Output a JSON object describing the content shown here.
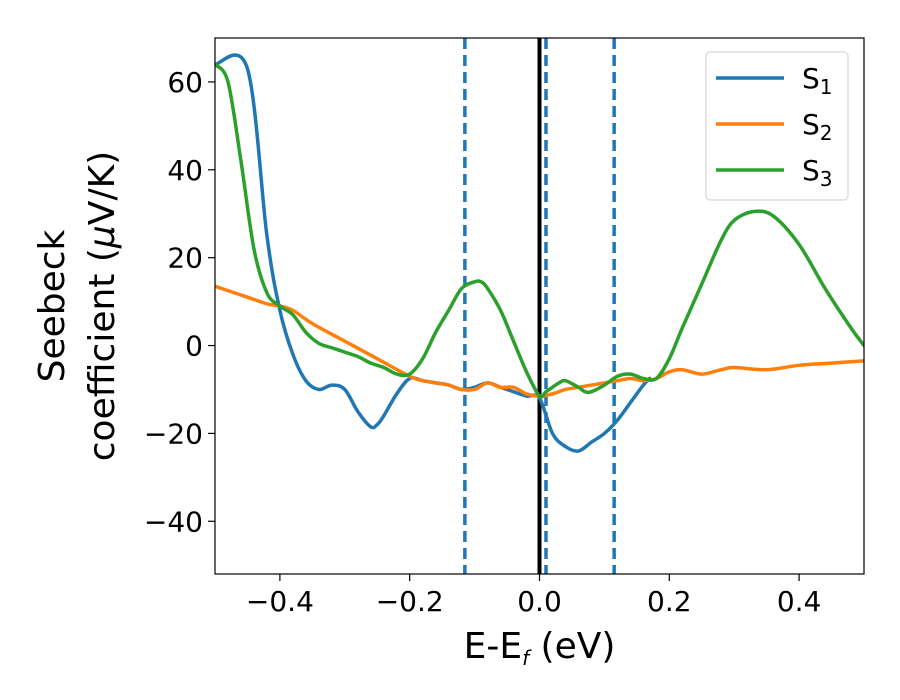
{
  "chart_data": {
    "type": "line",
    "xlabel": {
      "main": "E-E",
      "sub": "f",
      "unit": " (eV)"
    },
    "ylabel": {
      "line1": "Seebeck",
      "line2_pre": "coefficient  (",
      "line2_mu": "μ",
      "line2_post": "V/K)"
    },
    "xlim": [
      -0.5,
      0.5
    ],
    "ylim": [
      -52,
      70
    ],
    "xticks": [
      -0.4,
      -0.2,
      0.0,
      0.2,
      0.4
    ],
    "xtick_labels": [
      "−0.4",
      "−0.2",
      "0.0",
      "0.2",
      "0.4"
    ],
    "yticks": [
      -40,
      -20,
      0,
      20,
      40,
      60
    ],
    "ytick_labels": [
      "−40",
      "−20",
      "0",
      "20",
      "40",
      "60"
    ],
    "grid": false,
    "legend_position": "top-right",
    "vertical_lines": [
      {
        "x": -0.115,
        "style": "dashed",
        "color": "#1f77b4"
      },
      {
        "x": 0.0,
        "style": "solid",
        "color": "#000000"
      },
      {
        "x": 0.01,
        "style": "dashed",
        "color": "#1f77b4"
      },
      {
        "x": 0.115,
        "style": "dashed",
        "color": "#1f77b4"
      }
    ],
    "series": [
      {
        "name": "S",
        "sub": "1",
        "color": "#1f77b4",
        "x": [
          -0.5,
          -0.45,
          -0.42,
          -0.4,
          -0.38,
          -0.36,
          -0.34,
          -0.32,
          -0.3,
          -0.28,
          -0.26,
          -0.25,
          -0.24,
          -0.22,
          -0.2,
          -0.18,
          -0.16,
          -0.14,
          -0.12,
          -0.1,
          -0.08,
          -0.06,
          -0.04,
          -0.02,
          0.0,
          0.02,
          0.04,
          0.06,
          0.08,
          0.1,
          0.12,
          0.14,
          0.16,
          0.17
        ],
        "y": [
          64,
          63,
          25,
          8,
          -2,
          -8,
          -10,
          -9,
          -10,
          -15,
          -18.5,
          -18,
          -16,
          -11,
          -7.5,
          -8,
          -8.5,
          -9,
          -10,
          -9.5,
          -8.5,
          -9.5,
          -10.5,
          -11.5,
          -12,
          -20,
          -23,
          -24,
          -22,
          -20,
          -17,
          -13,
          -9,
          -7.5
        ]
      },
      {
        "name": "S",
        "sub": "2",
        "color": "#ff7f0e",
        "x": [
          -0.5,
          -0.45,
          -0.42,
          -0.4,
          -0.38,
          -0.35,
          -0.3,
          -0.25,
          -0.2,
          -0.18,
          -0.16,
          -0.14,
          -0.12,
          -0.1,
          -0.08,
          -0.06,
          -0.04,
          -0.02,
          0.0,
          0.02,
          0.04,
          0.06,
          0.08,
          0.1,
          0.12,
          0.14,
          0.16,
          0.18,
          0.2,
          0.22,
          0.25,
          0.28,
          0.3,
          0.35,
          0.4,
          0.45,
          0.5
        ],
        "y": [
          13.5,
          11,
          9.5,
          9,
          8,
          5,
          1,
          -3,
          -7,
          -8,
          -8.5,
          -9,
          -10,
          -10,
          -8.5,
          -9.5,
          -9.5,
          -11,
          -11.5,
          -11,
          -10,
          -9.5,
          -9,
          -8.5,
          -8,
          -7.5,
          -8,
          -7.5,
          -6,
          -5.5,
          -6.5,
          -5.5,
          -5,
          -5.5,
          -4.5,
          -4,
          -3.5
        ]
      },
      {
        "name": "S",
        "sub": "3",
        "color": "#2ca02c",
        "x": [
          -0.5,
          -0.48,
          -0.46,
          -0.44,
          -0.42,
          -0.4,
          -0.38,
          -0.36,
          -0.34,
          -0.32,
          -0.3,
          -0.28,
          -0.26,
          -0.24,
          -0.22,
          -0.2,
          -0.18,
          -0.16,
          -0.14,
          -0.12,
          -0.1,
          -0.09,
          -0.08,
          -0.06,
          -0.04,
          -0.02,
          0.0,
          0.01,
          0.02,
          0.03,
          0.04,
          0.06,
          0.07,
          0.08,
          0.1,
          0.12,
          0.14,
          0.16,
          0.18,
          0.2,
          0.22,
          0.25,
          0.28,
          0.3,
          0.33,
          0.36,
          0.4,
          0.44,
          0.48,
          0.5
        ],
        "y": [
          64,
          60,
          42,
          22,
          12,
          9,
          7,
          3,
          0.5,
          -0.5,
          -1.5,
          -2.5,
          -4,
          -5,
          -6.5,
          -6.5,
          -3,
          3,
          8,
          13,
          14.5,
          14.5,
          13,
          8,
          1,
          -6,
          -11.5,
          -10.5,
          -9.5,
          -8.5,
          -8,
          -9.5,
          -10.5,
          -10.5,
          -9,
          -7,
          -6.5,
          -7.5,
          -7.5,
          -3,
          4,
          14,
          24,
          28.5,
          30.5,
          29.5,
          23,
          13,
          4,
          0
        ]
      }
    ]
  }
}
